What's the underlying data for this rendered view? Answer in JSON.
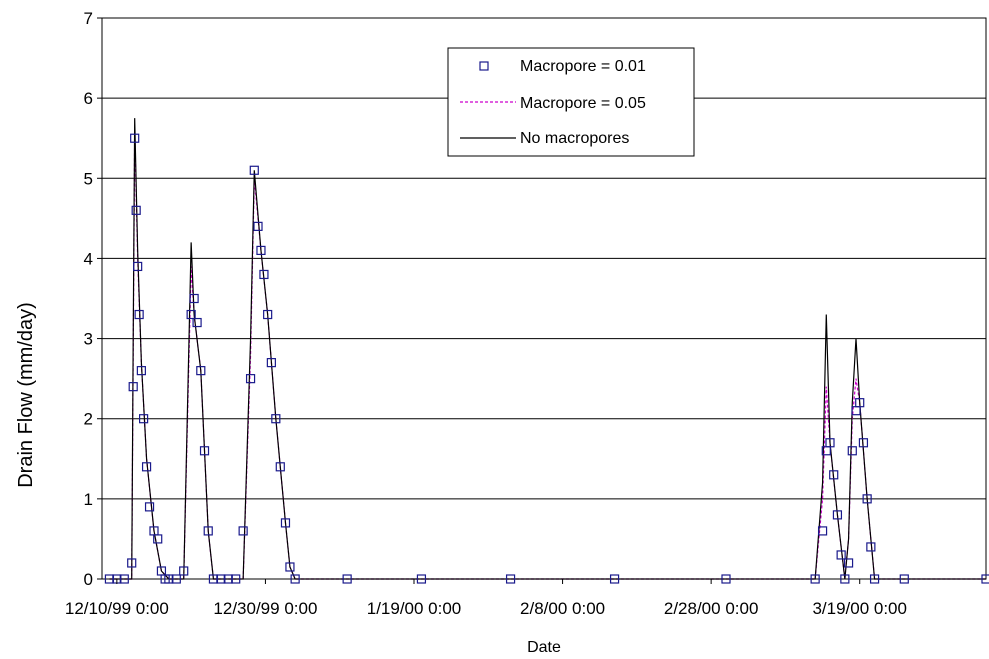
{
  "chart_data": {
    "type": "line",
    "title": "",
    "xlabel": "Date",
    "ylabel": "Drain Flow (mm/day)",
    "xlim": [
      "12/10/99 0:00",
      "4/5/00 0:00"
    ],
    "ylim": [
      0,
      7
    ],
    "y_ticks": [
      "0",
      "1",
      "2",
      "3",
      "4",
      "5",
      "6",
      "7"
    ],
    "x_ticks": [
      "12/10/99 0:00",
      "12/30/99 0:00",
      "1/19/00 0:00",
      "2/8/00 0:00",
      "2/28/00 0:00",
      "3/19/00 0:00"
    ],
    "x_tick_dates": [
      "1999-12-10",
      "1999-12-30",
      "2000-01-19",
      "2000-02-08",
      "2000-02-28",
      "2000-03-19"
    ],
    "x_range_dates": [
      "1999-12-08",
      "2000-04-05"
    ],
    "grid": "horizontal",
    "legend_position": "top-center",
    "colors": {
      "macropore_001": "#1a1a8c",
      "macropore_005": "#cc00cc",
      "no_macropores": "#000000",
      "grid": "#000000"
    },
    "series": [
      {
        "name": "Macropore = 0.01",
        "style": "open-square-markers",
        "x": [
          "1999-12-09",
          "1999-12-10",
          "1999-12-11",
          "1999-12-12",
          "1999-12-12.2",
          "1999-12-12.4",
          "1999-12-12.6",
          "1999-12-12.8",
          "1999-12-13",
          "1999-12-13.3",
          "1999-12-13.6",
          "1999-12-14",
          "1999-12-14.4",
          "1999-12-15",
          "1999-12-15.5",
          "1999-12-16",
          "1999-12-16.5",
          "1999-12-17",
          "1999-12-18",
          "1999-12-19",
          "1999-12-20",
          "1999-12-20.4",
          "1999-12-20.8",
          "1999-12-21.3",
          "1999-12-21.8",
          "1999-12-22.3",
          "1999-12-23",
          "1999-12-24",
          "1999-12-25",
          "1999-12-26",
          "1999-12-27",
          "1999-12-28",
          "1999-12-28.5",
          "1999-12-29",
          "1999-12-29.4",
          "1999-12-29.8",
          "1999-12-30.3",
          "1999-12-30.8",
          "1999-12-31.4",
          "2000-01-01",
          "2000-01-01.7",
          "2000-01-02.3",
          "2000-01-03",
          "2000-01-10",
          "2000-01-20",
          "2000-02-01",
          "2000-02-15",
          "2000-03-01",
          "2000-03-13",
          "2000-03-14",
          "2000-03-14.5",
          "2000-03-15",
          "2000-03-15.5",
          "2000-03-16",
          "2000-03-16.5",
          "2000-03-17",
          "2000-03-17.5",
          "2000-03-18",
          "2000-03-18.5",
          "2000-03-19",
          "2000-03-19.5",
          "2000-03-20",
          "2000-03-20.5",
          "2000-03-21",
          "2000-03-25",
          "2000-04-05"
        ],
        "values": [
          0,
          0,
          0,
          0.2,
          2.4,
          5.5,
          4.6,
          3.9,
          3.3,
          2.6,
          2.0,
          1.4,
          0.9,
          0.6,
          0.5,
          0.1,
          0,
          0,
          0,
          0.1,
          3.3,
          3.5,
          3.2,
          2.6,
          1.6,
          0.6,
          0,
          0,
          0,
          0,
          0.6,
          2.5,
          5.1,
          4.4,
          4.1,
          3.8,
          3.3,
          2.7,
          2.0,
          1.4,
          0.7,
          0.15,
          0,
          0,
          0,
          0,
          0,
          0,
          0,
          0.6,
          1.6,
          1.7,
          1.3,
          0.8,
          0.3,
          0,
          0.2,
          1.6,
          2.1,
          2.2,
          1.7,
          1.0,
          0.4,
          0,
          0,
          0
        ]
      },
      {
        "name": "Macropore = 0.05",
        "style": "dashed-line",
        "x": [
          "1999-12-09",
          "1999-12-12",
          "1999-12-12.2",
          "1999-12-12.4",
          "1999-12-12.8",
          "1999-12-13.3",
          "1999-12-14",
          "1999-12-15",
          "1999-12-16",
          "1999-12-17",
          "1999-12-19",
          "1999-12-20",
          "1999-12-20.4",
          "1999-12-21.3",
          "1999-12-22.3",
          "1999-12-23",
          "1999-12-27",
          "1999-12-28",
          "1999-12-28.5",
          "1999-12-29.4",
          "1999-12-30.3",
          "1999-12-31.4",
          "2000-01-01.7",
          "2000-01-02.3",
          "2000-01-03",
          "2000-03-13",
          "2000-03-14",
          "2000-03-14.5",
          "2000-03-15",
          "2000-03-16",
          "2000-03-17",
          "2000-03-17.5",
          "2000-03-18",
          "2000-03-18.5",
          "2000-03-19",
          "2000-03-20",
          "2000-03-21",
          "2000-04-05"
        ],
        "values": [
          0,
          0,
          2.8,
          5.6,
          4.0,
          2.7,
          1.5,
          0.6,
          0.1,
          0,
          0,
          3.9,
          3.3,
          2.6,
          0.6,
          0,
          0,
          2.8,
          5.0,
          4.1,
          3.3,
          2.0,
          0.7,
          0.15,
          0,
          0,
          1.0,
          2.4,
          1.7,
          0.8,
          0,
          0.5,
          2.0,
          2.5,
          2.2,
          1.0,
          0,
          0
        ]
      },
      {
        "name": "No macropores",
        "style": "solid-line",
        "x": [
          "1999-12-09",
          "1999-12-12",
          "1999-12-12.2",
          "1999-12-12.4",
          "1999-12-12.8",
          "1999-12-13.3",
          "1999-12-14",
          "1999-12-15",
          "1999-12-16",
          "1999-12-17",
          "1999-12-19",
          "1999-12-20",
          "1999-12-20.4",
          "1999-12-21.3",
          "1999-12-22.3",
          "1999-12-23",
          "1999-12-27",
          "1999-12-28",
          "1999-12-28.5",
          "1999-12-29.4",
          "1999-12-30.3",
          "1999-12-31.4",
          "2000-01-01.7",
          "2000-01-02.3",
          "2000-01-03",
          "2000-03-13",
          "2000-03-14",
          "2000-03-14.5",
          "2000-03-15",
          "2000-03-16",
          "2000-03-17",
          "2000-03-17.5",
          "2000-03-18",
          "2000-03-18.5",
          "2000-03-19",
          "2000-03-20",
          "2000-03-21",
          "2000-04-05"
        ],
        "values": [
          0,
          0,
          3.0,
          5.75,
          4.1,
          2.7,
          1.5,
          0.6,
          0.1,
          0,
          0,
          4.2,
          3.3,
          2.6,
          0.6,
          0,
          0,
          3.0,
          5.1,
          4.1,
          3.3,
          2.0,
          0.7,
          0.15,
          0,
          0,
          1.2,
          3.3,
          1.7,
          0.8,
          0,
          0.5,
          2.2,
          3.0,
          2.2,
          1.0,
          0,
          0
        ]
      }
    ]
  }
}
